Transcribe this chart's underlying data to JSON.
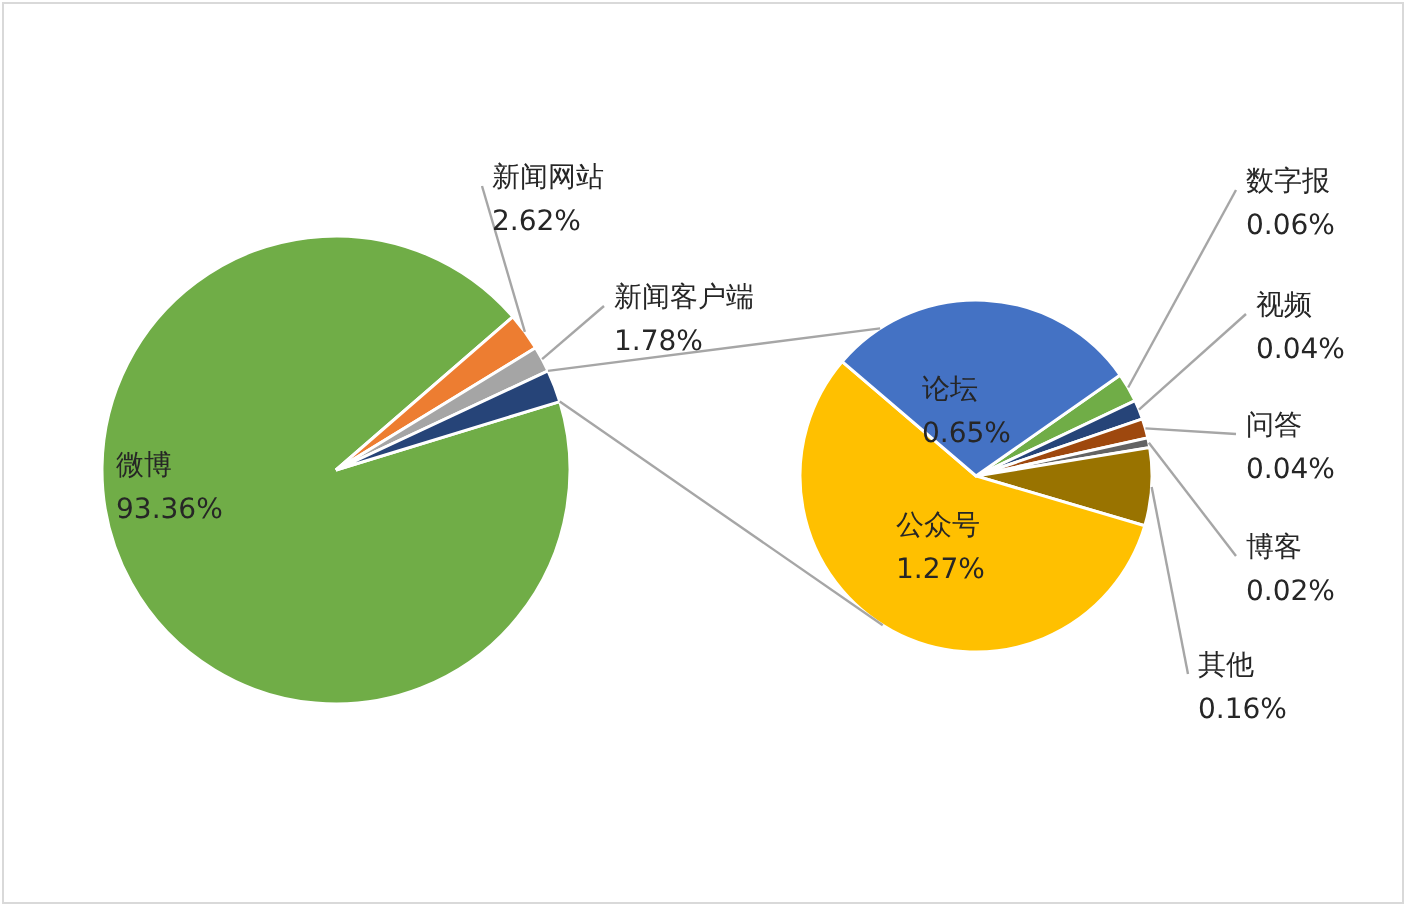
{
  "chart_data": [
    {
      "type": "pie",
      "categories": [
        "微博",
        "新闻网站",
        "新闻客户端",
        null
      ],
      "values": [
        93.36,
        2.62,
        1.78,
        2.24
      ],
      "colors": [
        "#70ad47",
        "#ed7d31",
        "#a5a5a5",
        "#264478"
      ],
      "value_labels": [
        "93.36%",
        "2.62%",
        "1.78%",
        null
      ]
    },
    {
      "type": "pie",
      "categories": [
        "数字报",
        "视频",
        "问答",
        "博客",
        "其他",
        "公众号",
        "论坛"
      ],
      "values": [
        0.06,
        0.04,
        0.04,
        0.02,
        0.16,
        1.27,
        0.65
      ],
      "colors": [
        "#70ad47",
        "#264478",
        "#9e480e",
        "#636363",
        "#997300",
        "#ffc000",
        "#4472c4"
      ],
      "value_labels": [
        "0.06%",
        "0.04%",
        "0.04%",
        "0.02%",
        "0.16%",
        "1.27%",
        "0.65%"
      ]
    }
  ]
}
